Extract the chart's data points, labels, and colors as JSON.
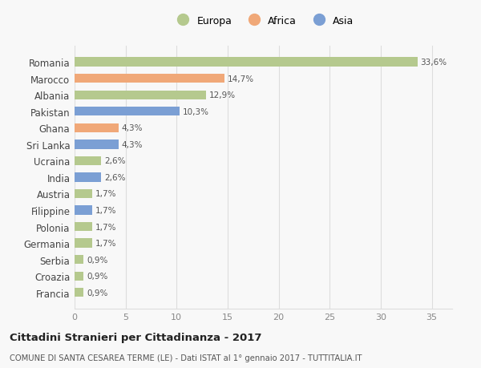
{
  "countries": [
    "Romania",
    "Marocco",
    "Albania",
    "Pakistan",
    "Ghana",
    "Sri Lanka",
    "Ucraina",
    "India",
    "Austria",
    "Filippine",
    "Polonia",
    "Germania",
    "Serbia",
    "Croazia",
    "Francia"
  ],
  "values": [
    33.6,
    14.7,
    12.9,
    10.3,
    4.3,
    4.3,
    2.6,
    2.6,
    1.7,
    1.7,
    1.7,
    1.7,
    0.9,
    0.9,
    0.9
  ],
  "labels": [
    "33,6%",
    "14,7%",
    "12,9%",
    "10,3%",
    "4,3%",
    "4,3%",
    "2,6%",
    "2,6%",
    "1,7%",
    "1,7%",
    "1,7%",
    "1,7%",
    "0,9%",
    "0,9%",
    "0,9%"
  ],
  "colors": [
    "#b5c98e",
    "#f0a878",
    "#b5c98e",
    "#7b9fd4",
    "#f0a878",
    "#7b9fd4",
    "#b5c98e",
    "#7b9fd4",
    "#b5c98e",
    "#7b9fd4",
    "#b5c98e",
    "#b5c98e",
    "#b5c98e",
    "#b5c98e",
    "#b5c98e"
  ],
  "legend_labels": [
    "Europa",
    "Africa",
    "Asia"
  ],
  "legend_colors": [
    "#b5c98e",
    "#f0a878",
    "#7b9fd4"
  ],
  "title": "Cittadini Stranieri per Cittadinanza - 2017",
  "subtitle": "COMUNE DI SANTA CESAREA TERME (LE) - Dati ISTAT al 1° gennaio 2017 - TUTTITALIA.IT",
  "xlim": [
    0,
    37
  ],
  "xticks": [
    0,
    5,
    10,
    15,
    20,
    25,
    30,
    35
  ],
  "background_color": "#f8f8f8",
  "grid_color": "#dddddd",
  "bar_height": 0.55
}
